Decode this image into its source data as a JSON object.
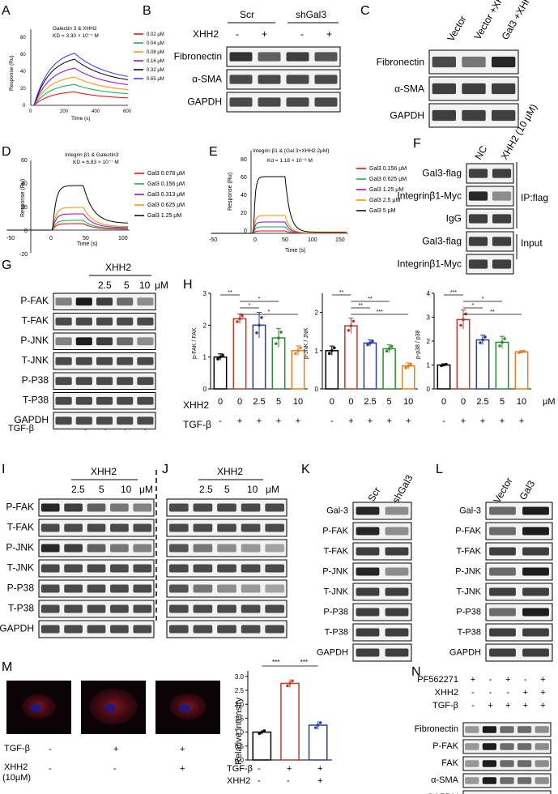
{
  "panels": {
    "A": {
      "letter": "A",
      "title": "Galectin 3 & XHH2",
      "kd": "KD = 3.30 × 10⁻⁷ M",
      "ylabel": "Response (Ru)",
      "xlabel": "Time (s)",
      "yticks": [
        "0",
        "20",
        "40",
        "60",
        "80"
      ],
      "xticks": [
        "0",
        "200",
        "400",
        "600"
      ],
      "legend": [
        "0.02 μM",
        "0.04 μM",
        "0.08 μM",
        "0.16 μM",
        "0.32 μM",
        "0.65 μM"
      ],
      "colors": [
        "#ff0000",
        "#00b050",
        "#ff8c00",
        "#9900cc",
        "#000000",
        "#3333ff"
      ]
    },
    "B": {
      "letter": "B",
      "groups": [
        "Scr",
        "shGal3"
      ],
      "treat_label": "XHH2",
      "treat": [
        "-",
        "+",
        "-",
        "+"
      ],
      "rows": [
        "Fibronectin",
        "α-SMA",
        "GAPDH"
      ]
    },
    "C": {
      "letter": "C",
      "lanes": [
        "Vector",
        "Vector +XHH2",
        "Gal3 +XHH2"
      ],
      "rows": [
        "Fibronectin",
        "α-SMA",
        "GAPDH"
      ]
    },
    "D": {
      "letter": "D",
      "title": "Integrin β1 & Galectin3",
      "kd": "KD = 6.83 × 10⁻⁷ M",
      "ylabel": "Response (Ru)",
      "xlabel": "Time (s)",
      "yticks": [
        "-20",
        "0",
        "20",
        "40",
        "60"
      ],
      "xticks": [
        "-50",
        "0",
        "50",
        "100"
      ],
      "legend": [
        "Gal3 0.078 μM",
        "Gal3 0.156 μM",
        "Gal3 0.313 μM",
        "Gal3 0.625 μM",
        "Gal3 1.25 μM"
      ],
      "colors": [
        "#ff0000",
        "#00b050",
        "#9900cc",
        "#ff8c00",
        "#000000"
      ]
    },
    "E": {
      "letter": "E",
      "title": "Integrin β1 & (Gal 3+XHH2 2μM)",
      "kd": "Kd = 1.18 × 10⁻⁶ M",
      "ylabel": "Response (Ru)",
      "xlabel": "Time (s)",
      "yticks": [
        "0",
        "20",
        "40",
        "60",
        "80"
      ],
      "xticks": [
        "-50",
        "0",
        "50",
        "100",
        "150"
      ],
      "legend": [
        "Gal3 0.156 μM",
        "Gal3 0.625 μM",
        "Gal3 1.25 μM",
        "Gal3 2.5 μM",
        "Gal3 5 μM"
      ],
      "colors": [
        "#ff0000",
        "#00b050",
        "#9900cc",
        "#ff8c00",
        "#000000"
      ]
    },
    "F": {
      "letter": "F",
      "lanes": [
        "NC",
        "XHH2 (10 μM)"
      ],
      "rows": [
        "Gal3-flag",
        "Integrinβ1-Myc",
        "IgG",
        "Gal3-flag",
        "Integrinβ1-Myc"
      ],
      "bracket1": "IP:flag",
      "bracket2": "Input"
    },
    "G": {
      "letter": "G",
      "drug": "XHH2",
      "doses": [
        "2.5",
        "5",
        "10"
      ],
      "unit": "μM",
      "rows": [
        "P-FAK",
        "T-FAK",
        "P-JNK",
        "T-JNK",
        "P-P38",
        "T-P38",
        "GAPDH"
      ],
      "tgf_label": "TGF-β",
      "tgf": [
        "-",
        "+",
        "+",
        "+",
        "+"
      ]
    },
    "H": {
      "letter": "H",
      "xhh2_label": "XHH2",
      "tgf_label": "TGF-β",
      "unit": "μM",
      "doses": [
        "0",
        "0",
        "2.5",
        "5",
        "10"
      ],
      "tgf": [
        "-",
        "+",
        "+",
        "+",
        "+"
      ],
      "bar_colors": [
        "#000000",
        "#c0392b",
        "#2c3e9e",
        "#2e8b2e",
        "#e67e22"
      ]
    },
    "I": {
      "letter": "I",
      "drug": "XHH2",
      "doses": [
        "2.5",
        "5",
        "10"
      ],
      "unit": "μM",
      "rows": [
        "P-FAK",
        "T-FAK",
        "P-JNK",
        "T-JNK",
        "P-P38",
        "T-P38",
        "GAPDH"
      ]
    },
    "J": {
      "letter": "J",
      "drug": "XHH2",
      "doses": [
        "2.5",
        "5",
        "10"
      ],
      "unit": "μM"
    },
    "K": {
      "letter": "K",
      "lanes": [
        "Scr",
        "shGal3"
      ],
      "rows": [
        "Gal-3",
        "P-FAK",
        "T-FAK",
        "P-JNK",
        "T-JNK",
        "P-P38",
        "T-P38",
        "GAPDH"
      ]
    },
    "L": {
      "letter": "L",
      "lanes": [
        "Vector",
        "Gal3"
      ],
      "rows": [
        "Gal-3",
        "P-FAK",
        "T-FAK",
        "P-JNK",
        "T-JNK",
        "P-P38",
        "T-P38",
        "GAPDH"
      ]
    },
    "M": {
      "letter": "M",
      "tgf_label": "TGF-β",
      "xhh2_label": "XHH2",
      "xhh2_sub": "(10μM)",
      "tgf": [
        "-",
        "+",
        "+"
      ],
      "xhh2": [
        "-",
        "-",
        "+"
      ],
      "ylabel": "Relative intensity",
      "yticks": [
        "0.0",
        "0.5",
        "1.0",
        "1.5",
        "2.0",
        "2.5",
        "3.0"
      ],
      "sig": [
        "***",
        "***"
      ]
    },
    "N": {
      "letter": "N",
      "cond_rows": [
        "PF562271",
        "XHH2",
        "TGF-β"
      ],
      "cond": [
        [
          "+",
          "-",
          "+",
          "-",
          "+"
        ],
        [
          "-",
          "-",
          "-",
          "+",
          "+"
        ],
        [
          "-",
          "+",
          "+",
          "+",
          "+"
        ]
      ],
      "rows": [
        "Fibronectin",
        "P-FAK",
        "FAK",
        "α-SMA",
        "GAPDH"
      ]
    }
  },
  "chart_data": [
    {
      "type": "bar",
      "ylabel": "p-FAK / FAK",
      "categories": [
        "0",
        "0",
        "2.5",
        "5",
        "10"
      ],
      "values": [
        1.0,
        2.2,
        2.0,
        1.6,
        1.2
      ],
      "errors": [
        0.1,
        0.15,
        0.4,
        0.3,
        0.15
      ],
      "ylim": [
        0,
        3
      ],
      "yticks": [
        "0",
        "1",
        "2",
        "3"
      ],
      "sig": [
        "**",
        "*",
        "*",
        "*"
      ]
    },
    {
      "type": "bar",
      "ylabel": "p-JNK / JNK",
      "categories": [
        "0",
        "0",
        "2.5",
        "5",
        "10"
      ],
      "values": [
        1.0,
        1.65,
        1.2,
        1.05,
        0.6
      ],
      "errors": [
        0.12,
        0.2,
        0.08,
        0.1,
        0.08
      ],
      "ylim": [
        0,
        2.5
      ],
      "yticks": [
        "0",
        "1",
        "2"
      ],
      "sig": [
        "**",
        "**",
        "**",
        "***"
      ]
    },
    {
      "type": "bar",
      "ylabel": "p-p38 / p38",
      "categories": [
        "0",
        "0",
        "2.5",
        "5",
        "10"
      ],
      "values": [
        1.0,
        2.9,
        2.05,
        1.95,
        1.55
      ],
      "errors": [
        0.05,
        0.4,
        0.2,
        0.25,
        0.05
      ],
      "ylim": [
        0,
        4
      ],
      "yticks": [
        "0",
        "1",
        "2",
        "3",
        "4"
      ],
      "sig": [
        "***",
        "*",
        "*",
        "**"
      ]
    },
    {
      "type": "bar",
      "ylabel": "Relative intensity",
      "categories": [
        "1",
        "2",
        "3"
      ],
      "values": [
        1.0,
        2.75,
        1.25
      ],
      "errors": [
        0.08,
        0.15,
        0.15
      ],
      "ylim": [
        0,
        3.2
      ],
      "yticks": [
        "0.0",
        "0.5",
        "1.0",
        "1.5",
        "2.0",
        "2.5",
        "3.0"
      ]
    }
  ]
}
